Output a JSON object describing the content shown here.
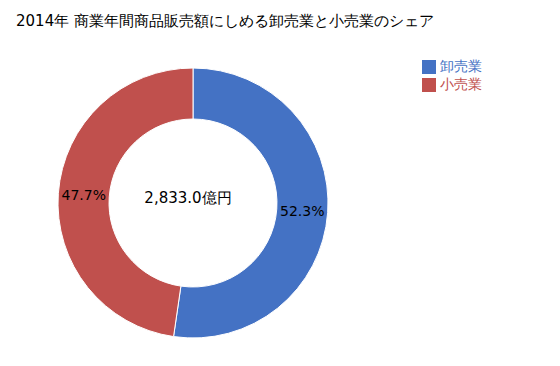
{
  "chart_data": {
    "type": "donut",
    "title": "2014年 商業年間商品販売額にしめる卸売業と小売業のシェア",
    "categories": [
      "卸売業",
      "小売業"
    ],
    "values": [
      52.3,
      47.7
    ],
    "value_labels": [
      "52.3%",
      "47.7%"
    ],
    "colors": [
      "#4472C4",
      "#C0504D"
    ],
    "data_labels": true,
    "annotations": [
      "2,833.0億円"
    ],
    "legend": "upper right"
  }
}
